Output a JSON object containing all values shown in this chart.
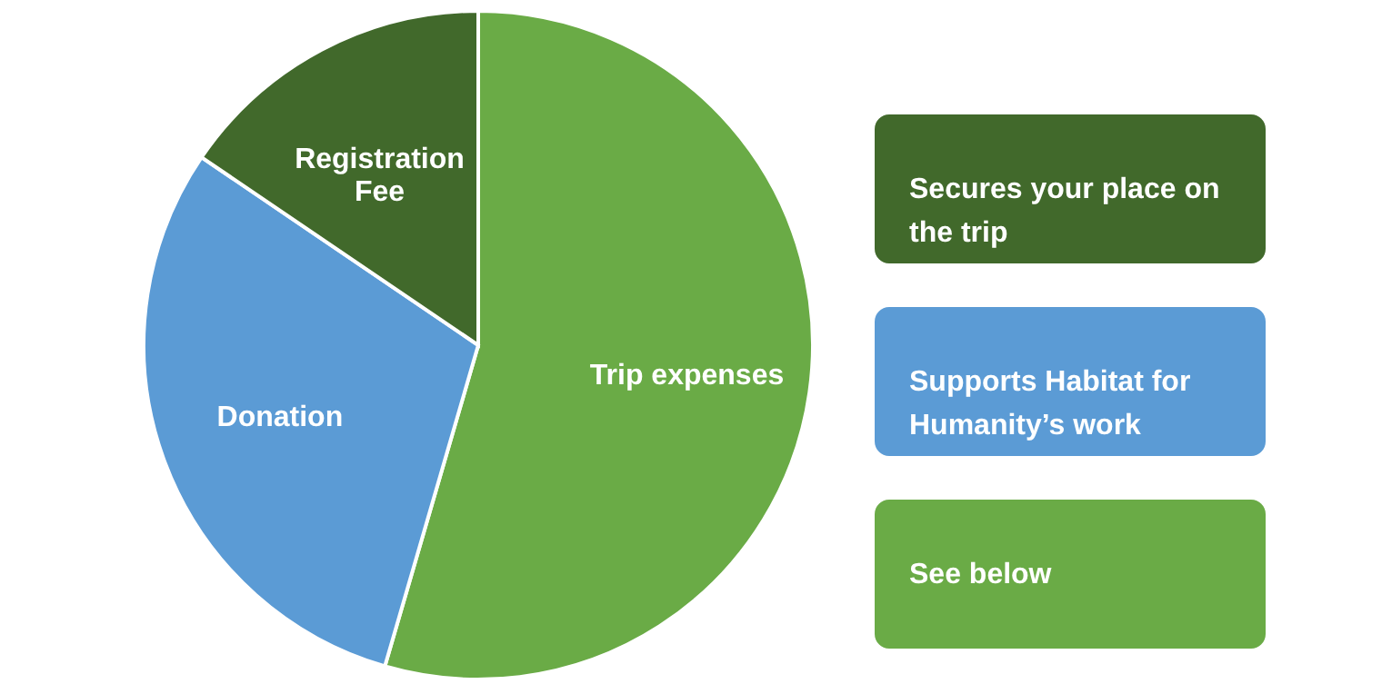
{
  "chart_data": {
    "type": "pie",
    "categories": [
      "Trip expenses",
      "Donation",
      "Registration Fee"
    ],
    "values": [
      54.5,
      30,
      15.5
    ],
    "colors": [
      "#6aab46",
      "#5b9bd5",
      "#41692b"
    ],
    "annotations": [
      "Secures your place on the trip",
      "Supports Habitat for Humanity’s work",
      "See below"
    ]
  }
}
